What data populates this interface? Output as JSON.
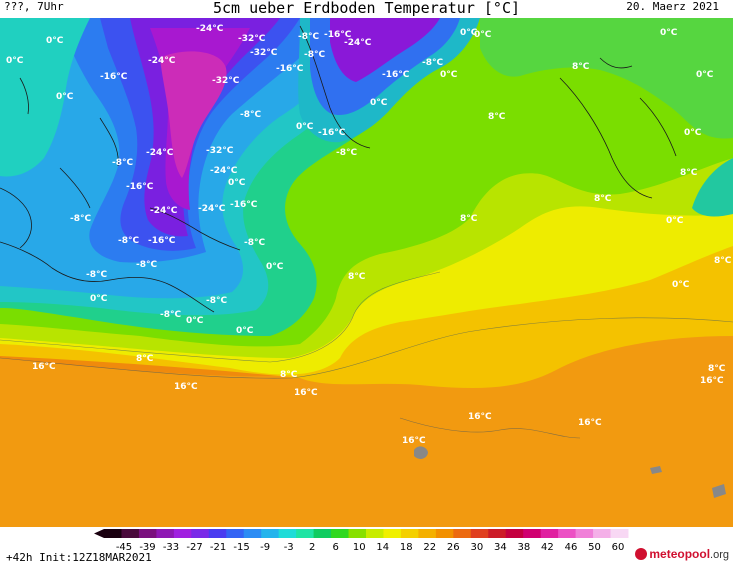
{
  "header": {
    "left": "???, 7Uhr",
    "title": "5cm ueber Erdboden Temperatur [°C]",
    "date": "20. Maerz 2021"
  },
  "footer": {
    "run_info": "+42h  Init:12Z18MAR2021",
    "logo_brand": "meteopool",
    "logo_tld": ".org"
  },
  "legend": {
    "ticks": [
      "-45",
      "-39",
      "-33",
      "-27",
      "-21",
      "-15",
      "-9",
      "-3",
      "2",
      "6",
      "10",
      "14",
      "18",
      "22",
      "26",
      "30",
      "34",
      "38",
      "42",
      "46",
      "50",
      "60"
    ],
    "colors": [
      "#1a0010",
      "#4a0a3c",
      "#7a107e",
      "#8e18b4",
      "#a020e0",
      "#7a2ae8",
      "#4a3cf0",
      "#3464f4",
      "#2c8cf4",
      "#24b4ec",
      "#20dcd8",
      "#20e4a4",
      "#10cc60",
      "#30d820",
      "#88e000",
      "#c8ec00",
      "#f0f000",
      "#f4d000",
      "#f4b000",
      "#f29000",
      "#ec6a10",
      "#e04020",
      "#cc1c28",
      "#c40040",
      "#d00070",
      "#e020a0",
      "#ec50c4",
      "#f080d8",
      "#f4b0e8",
      "#f8d8f4"
    ]
  },
  "map_labels": [
    {
      "text": "0°C"
    },
    {
      "text": "-24°C"
    },
    {
      "text": "-32°C"
    },
    {
      "text": "-8°C"
    },
    {
      "text": "-24°C"
    },
    {
      "text": "-32°C"
    },
    {
      "text": "-16°C"
    },
    {
      "text": "0°C"
    },
    {
      "text": "0°C"
    },
    {
      "text": "-24°C"
    },
    {
      "text": "-8°C"
    },
    {
      "text": "-8°C"
    },
    {
      "text": "0°C"
    },
    {
      "text": "0°C"
    },
    {
      "text": "-16°C"
    },
    {
      "text": "-32°C"
    },
    {
      "text": "-16°C"
    },
    {
      "text": "-16°C"
    },
    {
      "text": "0°C"
    },
    {
      "text": "8°C"
    },
    {
      "text": "0°C"
    },
    {
      "text": "0°C"
    },
    {
      "text": "0°C"
    },
    {
      "text": "-8°C"
    },
    {
      "text": "8°C"
    },
    {
      "text": "0°C"
    },
    {
      "text": "-16°C"
    },
    {
      "text": "0°C"
    },
    {
      "text": "-8°C"
    },
    {
      "text": "-24°C"
    },
    {
      "text": "-32°C"
    },
    {
      "text": "-8°C"
    },
    {
      "text": "-24°C"
    },
    {
      "text": "-16°C"
    },
    {
      "text": "0°C"
    },
    {
      "text": "8°C"
    },
    {
      "text": "-8°C"
    },
    {
      "text": "-24°C"
    },
    {
      "text": "-24°C"
    },
    {
      "text": "-16°C"
    },
    {
      "text": "8°C"
    },
    {
      "text": "0°C"
    },
    {
      "text": "-8°C"
    },
    {
      "text": "-16°C"
    },
    {
      "text": "-8°C"
    },
    {
      "text": "-8°C"
    },
    {
      "text": "0°C"
    },
    {
      "text": "8°C"
    },
    {
      "text": "-8°C"
    },
    {
      "text": "0°C"
    },
    {
      "text": "8°C"
    },
    {
      "text": "0°C"
    },
    {
      "text": "8°C"
    },
    {
      "text": "-8°C"
    },
    {
      "text": "-8°C"
    },
    {
      "text": "0°C"
    },
    {
      "text": "0°C"
    },
    {
      "text": "16°C"
    },
    {
      "text": "8°C"
    },
    {
      "text": "8°C"
    },
    {
      "text": "16°C"
    },
    {
      "text": "16°C"
    },
    {
      "text": "16°C"
    },
    {
      "text": "16°C"
    },
    {
      "text": "16°C"
    },
    {
      "text": "16°C"
    },
    {
      "text": "8°C"
    }
  ]
}
